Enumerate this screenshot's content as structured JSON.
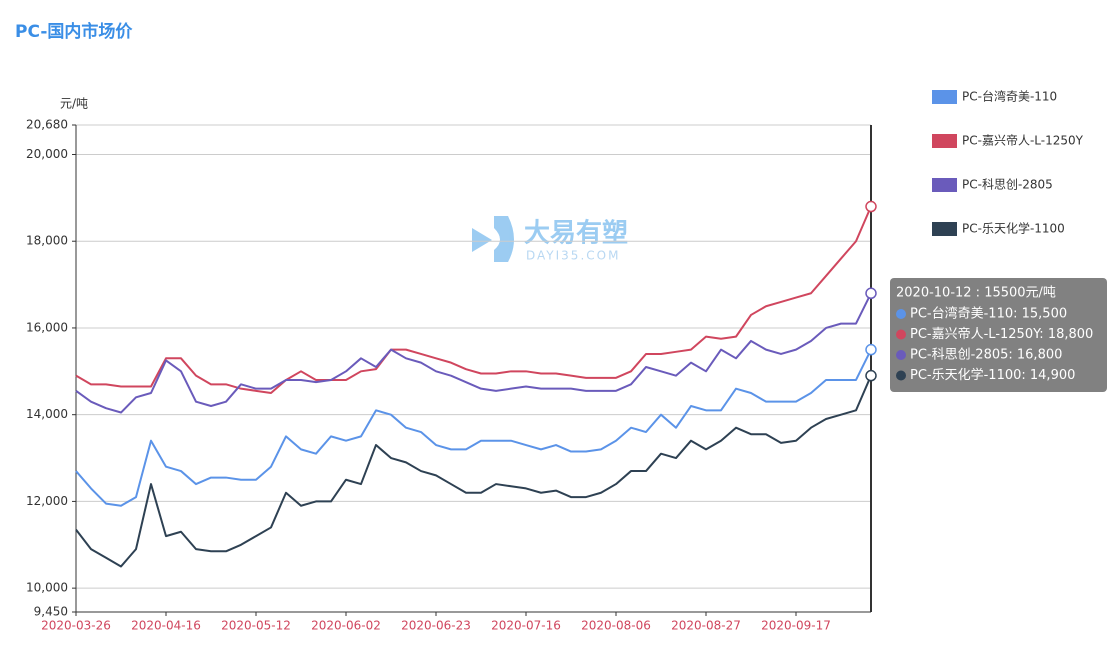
{
  "chart_data": {
    "type": "line",
    "title": "PC-国内市场价",
    "y_label": "元/吨",
    "watermark": {
      "title": "大易有塑",
      "subtitle": "DAYI35.COM"
    },
    "categories": [
      "2020-03-26",
      null,
      null,
      null,
      null,
      null,
      "2020-04-16",
      null,
      null,
      null,
      null,
      null,
      "2020-05-12",
      null,
      null,
      null,
      null,
      null,
      "2020-06-02",
      null,
      null,
      null,
      null,
      null,
      "2020-06-23",
      null,
      null,
      null,
      null,
      null,
      "2020-07-16",
      null,
      null,
      null,
      null,
      null,
      "2020-08-06",
      null,
      null,
      null,
      null,
      null,
      "2020-08-27",
      null,
      null,
      null,
      null,
      null,
      "2020-09-17",
      null,
      null,
      null,
      null,
      null
    ],
    "series": [
      {
        "name": "PC-台湾奇美-110",
        "color": "#5b93e8",
        "values": [
          12700,
          12300,
          11950,
          11900,
          12100,
          13400,
          12800,
          12700,
          12400,
          12550,
          12550,
          12500,
          12500,
          12800,
          13500,
          13200,
          13100,
          13500,
          13400,
          13500,
          14100,
          14000,
          13700,
          13600,
          13300,
          13200,
          13200,
          13400,
          13400,
          13400,
          13300,
          13200,
          13300,
          13150,
          13150,
          13200,
          13400,
          13700,
          13600,
          14000,
          13700,
          14200,
          14100,
          14100,
          14600,
          14500,
          14300,
          14300,
          14300,
          14500,
          14800,
          14800,
          14800,
          15500
        ]
      },
      {
        "name": "PC-嘉兴帝人-L-1250Y",
        "color": "#d0465e",
        "values": [
          14900,
          14700,
          14700,
          14650,
          14650,
          14650,
          15300,
          15300,
          14900,
          14700,
          14700,
          14600,
          14550,
          14500,
          14800,
          15000,
          14800,
          14800,
          14800,
          15000,
          15050,
          15500,
          15500,
          15400,
          15300,
          15200,
          15050,
          14950,
          14950,
          15000,
          15000,
          14950,
          14950,
          14900,
          14850,
          14850,
          14850,
          15000,
          15400,
          15400,
          15450,
          15500,
          15800,
          15750,
          15800,
          16300,
          16500,
          16600,
          16700,
          16800,
          17200,
          17600,
          18000,
          18800
        ]
      },
      {
        "name": "PC-科思创-2805",
        "color": "#6a5bbb",
        "values": [
          14550,
          14300,
          14150,
          14050,
          14400,
          14500,
          15250,
          15000,
          14300,
          14200,
          14300,
          14700,
          14600,
          14600,
          14800,
          14800,
          14750,
          14800,
          15000,
          15300,
          15100,
          15500,
          15300,
          15200,
          15000,
          14900,
          14750,
          14600,
          14550,
          14600,
          14650,
          14600,
          14600,
          14600,
          14550,
          14550,
          14550,
          14700,
          15100,
          15000,
          14900,
          15200,
          15000,
          15500,
          15300,
          15700,
          15500,
          15400,
          15500,
          15700,
          16000,
          16100,
          16100,
          16800
        ]
      },
      {
        "name": "PC-乐天化学-1100",
        "color": "#2e4153",
        "values": [
          11350,
          10900,
          10700,
          10500,
          10900,
          12400,
          11200,
          11300,
          10900,
          10850,
          10850,
          11000,
          11200,
          11400,
          12200,
          11900,
          12000,
          12000,
          12500,
          12400,
          13300,
          13000,
          12900,
          12700,
          12600,
          12400,
          12200,
          12200,
          12400,
          12350,
          12300,
          12200,
          12250,
          12100,
          12100,
          12200,
          12400,
          12700,
          12700,
          13100,
          13000,
          13400,
          13200,
          13400,
          13700,
          13550,
          13550,
          13350,
          13400,
          13700,
          13900,
          14000,
          14100,
          14900
        ]
      }
    ],
    "ylim": [
      9450,
      20680
    ],
    "yticks": [
      {
        "value": 9450,
        "label": "9,450"
      },
      {
        "value": 10000,
        "label": "10,000"
      },
      {
        "value": 12000,
        "label": "12,000"
      },
      {
        "value": 14000,
        "label": "14,000"
      },
      {
        "value": 16000,
        "label": "16,000"
      },
      {
        "value": 18000,
        "label": "18,000"
      },
      {
        "value": 20000,
        "label": "20,000"
      },
      {
        "value": 20680,
        "label": "20,680"
      }
    ],
    "grid": true,
    "legend": "right",
    "tooltip": {
      "title": "2020-10-12 : 15500元/吨",
      "lines": [
        "PC-台湾奇美-110: 15,500",
        "PC-嘉兴帝人-L-1250Y: 18,800",
        "PC-科思创-2805: 16,800",
        "PC-乐天化学-1100: 14,900"
      ]
    }
  }
}
